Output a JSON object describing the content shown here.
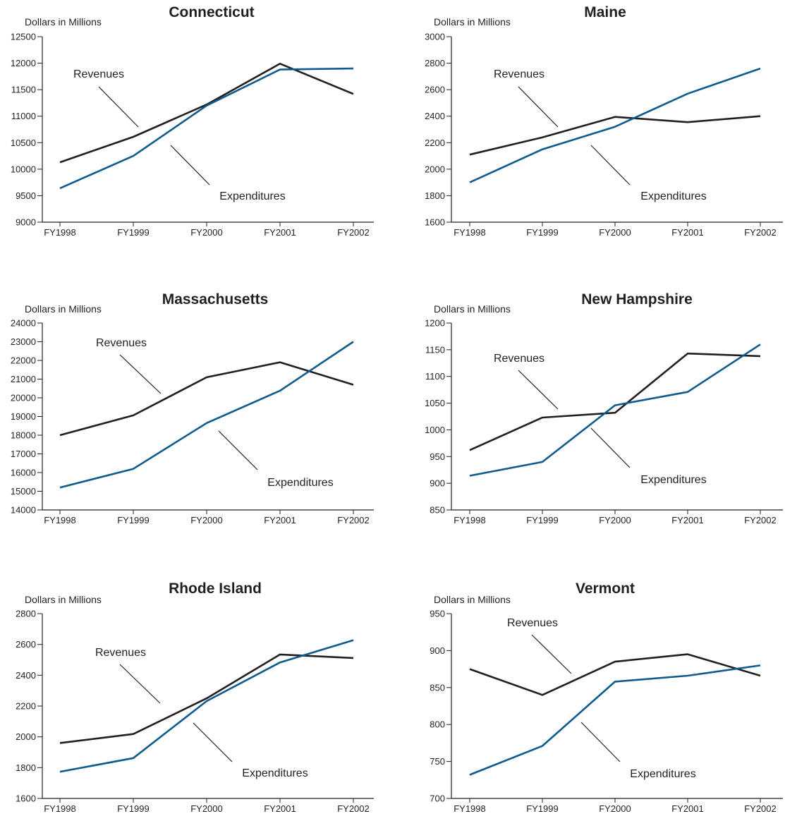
{
  "colors": {
    "revenues": "#231f20",
    "expenditures": "#0f5b8e",
    "axis": "#231f20"
  },
  "chart_data": [
    {
      "type": "line",
      "title": "Connecticut",
      "ylabel": "Dollars in Millions",
      "categories": [
        "FY1998",
        "FY1999",
        "FY2000",
        "FY2001",
        "FY2002"
      ],
      "ylim": [
        9000,
        12500
      ],
      "yticks": [
        9000,
        9500,
        10000,
        10500,
        11000,
        11500,
        12000,
        12500
      ],
      "series": [
        {
          "name": "Revenues",
          "values": [
            10130,
            10610,
            11220,
            11990,
            11420
          ]
        },
        {
          "name": "Expenditures",
          "values": [
            9640,
            10250,
            11200,
            11880,
            11900
          ]
        }
      ],
      "grid": false,
      "legend": "inline annotations"
    },
    {
      "type": "line",
      "title": "Maine",
      "ylabel": "Dollars in Millions",
      "categories": [
        "FY1998",
        "FY1999",
        "FY2000",
        "FY2001",
        "FY2002"
      ],
      "ylim": [
        1600,
        3000
      ],
      "yticks": [
        1600,
        1800,
        2000,
        2200,
        2400,
        2600,
        2800,
        3000
      ],
      "series": [
        {
          "name": "Revenues",
          "values": [
            2110,
            2240,
            2395,
            2355,
            2400
          ]
        },
        {
          "name": "Expenditures",
          "values": [
            1900,
            2150,
            2320,
            2570,
            2760
          ]
        }
      ],
      "grid": false,
      "legend": "inline annotations"
    },
    {
      "type": "line",
      "title": "Massachusetts",
      "ylabel": "Dollars in Millions",
      "categories": [
        "FY1998",
        "FY1999",
        "FY2000",
        "FY2001",
        "FY2002"
      ],
      "ylim": [
        14000,
        24000
      ],
      "yticks": [
        14000,
        15000,
        16000,
        17000,
        18000,
        19000,
        20000,
        21000,
        22000,
        23000,
        24000
      ],
      "series": [
        {
          "name": "Revenues",
          "values": [
            18000,
            19060,
            21100,
            21900,
            20700
          ]
        },
        {
          "name": "Expenditures",
          "values": [
            15200,
            16200,
            18650,
            20380,
            23000
          ]
        }
      ],
      "grid": false,
      "legend": "inline annotations"
    },
    {
      "type": "line",
      "title": "New Hampshire",
      "ylabel": "Dollars in Millions",
      "categories": [
        "FY1998",
        "FY1999",
        "FY2000",
        "FY2001",
        "FY2002"
      ],
      "ylim": [
        850,
        1200
      ],
      "yticks": [
        850,
        900,
        950,
        1000,
        1050,
        1100,
        1150,
        1200
      ],
      "series": [
        {
          "name": "Revenues",
          "values": [
            962,
            1023,
            1032,
            1143,
            1138
          ]
        },
        {
          "name": "Expenditures",
          "values": [
            914,
            940,
            1046,
            1071,
            1160
          ]
        }
      ],
      "grid": false,
      "legend": "inline annotations"
    },
    {
      "type": "line",
      "title": "Rhode Island",
      "ylabel": "Dollars in Millions",
      "categories": [
        "FY1998",
        "FY1999",
        "FY2000",
        "FY2001",
        "FY2002"
      ],
      "ylim": [
        1600,
        2800
      ],
      "yticks": [
        1600,
        1800,
        2000,
        2200,
        2400,
        2600,
        2800
      ],
      "series": [
        {
          "name": "Revenues",
          "values": [
            1960,
            2018,
            2250,
            2535,
            2512
          ]
        },
        {
          "name": "Expenditures",
          "values": [
            1773,
            1862,
            2232,
            2483,
            2628
          ]
        }
      ],
      "grid": false,
      "legend": "inline annotations"
    },
    {
      "type": "line",
      "title": "Vermont",
      "ylabel": "Dollars in Millions",
      "categories": [
        "FY1998",
        "FY1999",
        "FY2000",
        "FY2001",
        "FY2002"
      ],
      "ylim": [
        700,
        950
      ],
      "yticks": [
        700,
        750,
        800,
        850,
        900,
        950
      ],
      "series": [
        {
          "name": "Revenues",
          "values": [
            875,
            840,
            885,
            895,
            866
          ]
        },
        {
          "name": "Expenditures",
          "values": [
            732,
            771,
            858,
            866,
            880
          ]
        }
      ],
      "grid": false,
      "legend": "inline annotations"
    }
  ]
}
